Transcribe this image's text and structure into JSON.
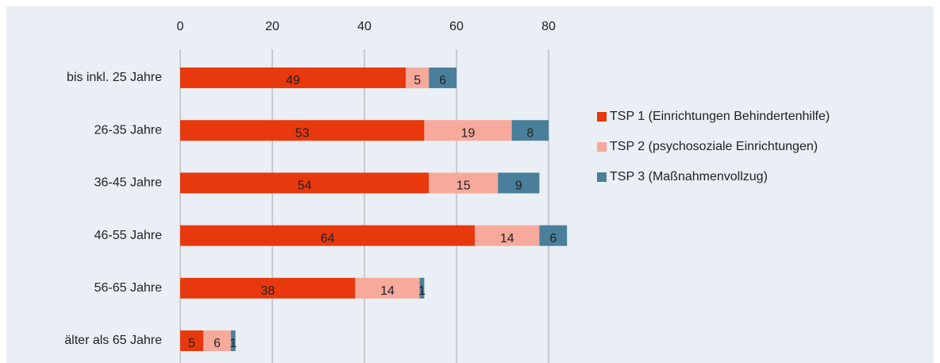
{
  "chart_data": {
    "type": "stacked-bar-horizontal",
    "categories": [
      "bis inkl. 25 Jahre",
      "26-35 Jahre",
      "36-45 Jahre",
      "46-55 Jahre",
      "56-65 Jahre",
      "älter als 65 Jahre"
    ],
    "series": [
      {
        "name": "TSP 1 (Einrichtungen Behindertenhilfe)",
        "color": "#e8380d",
        "values": [
          49,
          53,
          54,
          64,
          38,
          5
        ]
      },
      {
        "name": "TSP 2 (psychosoziale Einrichtungen)",
        "color": "#f7a99b",
        "values": [
          5,
          19,
          15,
          14,
          14,
          6
        ]
      },
      {
        "name": "TSP 3 (Maßnahmenvollzug)",
        "color": "#4a7f9b",
        "values": [
          6,
          8,
          9,
          6,
          1,
          1
        ]
      }
    ],
    "xlim": [
      0,
      90
    ],
    "xticks": [
      0,
      20,
      40,
      60,
      80
    ],
    "grid": true,
    "legend": "right"
  }
}
